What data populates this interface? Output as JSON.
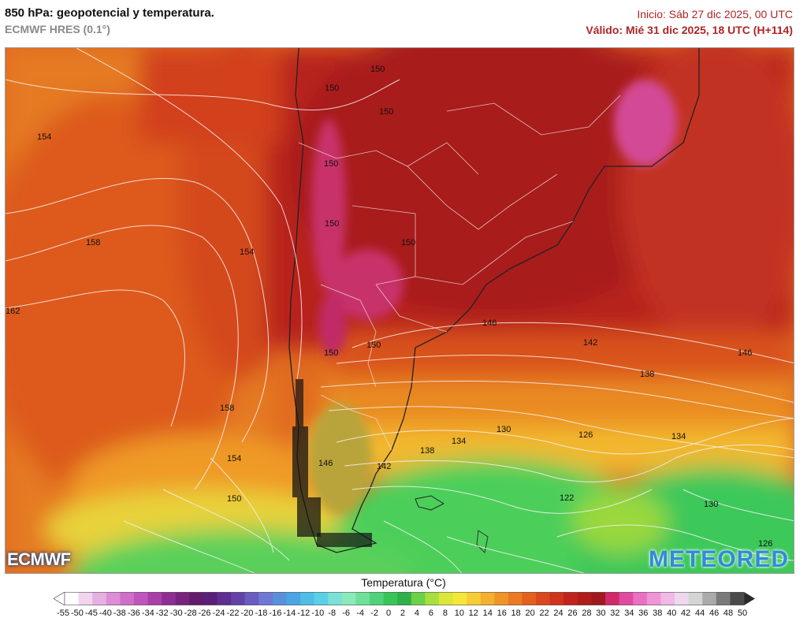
{
  "header": {
    "title": "850 hPa: geopotencial y temperatura.",
    "model": "ECMWF HRES (0.1°)",
    "init": "Inicio: Sáb 27 dic 2025, 00 UTC",
    "valid": "Válido: Mié 31 dic 2025, 18 UTC (H+114)"
  },
  "map": {
    "variable": "850 hPa geopotential (dam) and temperature",
    "contour_labels": [
      "150",
      "150",
      "150",
      "154",
      "150",
      "158",
      "154",
      "150",
      "150",
      "162",
      "150",
      "150",
      "146",
      "142",
      "146",
      "138",
      "158",
      "130",
      "134",
      "138",
      "126",
      "134",
      "154",
      "146",
      "142",
      "150",
      "122",
      "130",
      "126"
    ],
    "colors": {
      "very_warm_magenta": "#d43a88",
      "warm_dark_red": "#b0201c",
      "red": "#c8321e",
      "orange_red": "#d9521e",
      "orange": "#e5771f",
      "yellow": "#f1c22e",
      "lime": "#9fd83a",
      "green": "#3fcf5a",
      "dark_green": "#2aa84a"
    }
  },
  "logos": {
    "left": "ECMWF",
    "right": "METEORED"
  },
  "legend": {
    "title": "Temperatura (°C)",
    "ticks": [
      "-55",
      "-50",
      "-45",
      "-40",
      "-38",
      "-36",
      "-34",
      "-32",
      "-30",
      "-28",
      "-26",
      "-24",
      "-22",
      "-20",
      "-18",
      "-16",
      "-14",
      "-12",
      "-10",
      "-8",
      "-6",
      "-4",
      "-2",
      "0",
      "2",
      "4",
      "6",
      "8",
      "10",
      "12",
      "14",
      "16",
      "18",
      "20",
      "22",
      "24",
      "26",
      "28",
      "30",
      "32",
      "34",
      "36",
      "38",
      "40",
      "42",
      "44",
      "46",
      "48",
      "50"
    ],
    "colors": [
      "#ffffff",
      "#f2d4ee",
      "#e7b0e2",
      "#dc8ed6",
      "#cf6fca",
      "#c056bd",
      "#a940a8",
      "#8f2f93",
      "#78237e",
      "#641b6c",
      "#5a1f78",
      "#5e2e90",
      "#6443a8",
      "#6a5cc0",
      "#6f78d4",
      "#5a8fdc",
      "#4aa5e2",
      "#4fbde6",
      "#5ad0e8",
      "#7ae0d8",
      "#8aeab8",
      "#6ee09a",
      "#4fd27a",
      "#39c45a",
      "#2fb04a",
      "#6cd048",
      "#a8de3e",
      "#dbe63a",
      "#f5e63a",
      "#f7cc34",
      "#f4b02e",
      "#ef9428",
      "#ea7a24",
      "#e36020",
      "#d9481e",
      "#cf341c",
      "#c1241c",
      "#b01c1c",
      "#a01820",
      "#d02a6a",
      "#e04aa0",
      "#ea70c2",
      "#f094d8",
      "#f2b8e6",
      "#eed8ee",
      "#d4d4d4",
      "#aaaaaa",
      "#7a7a7a",
      "#4a4a4a"
    ]
  }
}
